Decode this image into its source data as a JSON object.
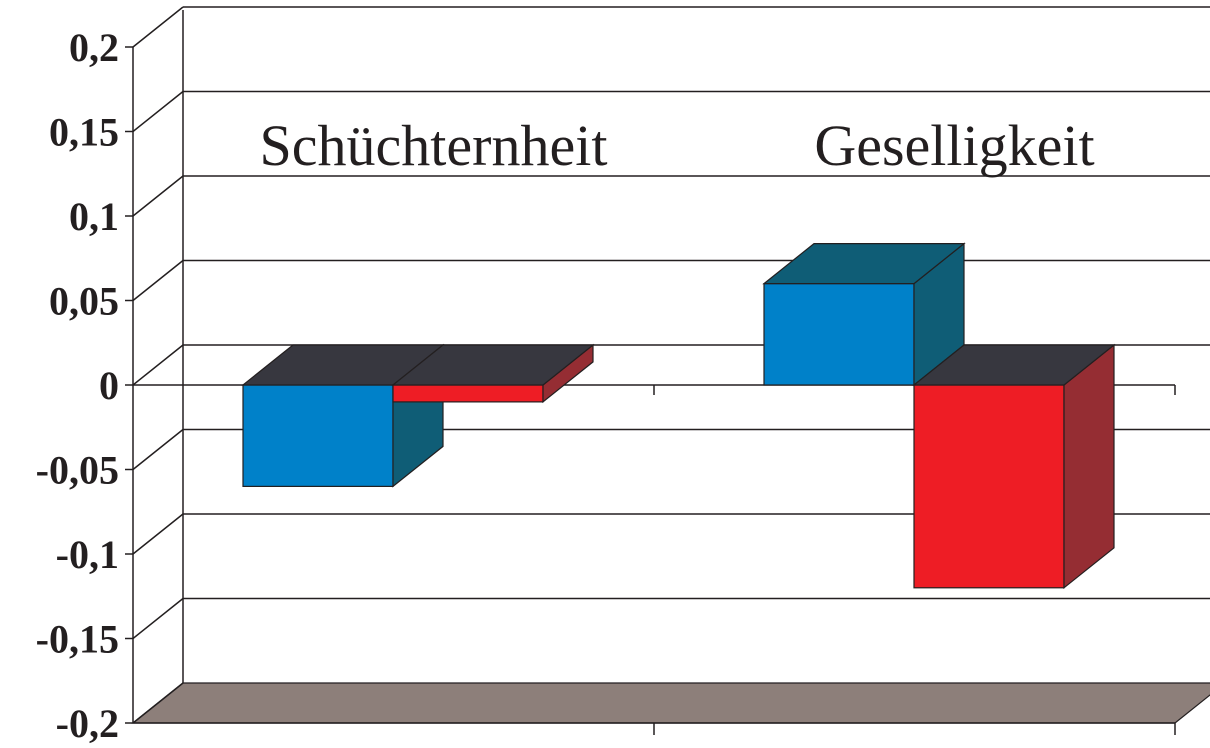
{
  "chart_data": {
    "type": "bar",
    "categories": [
      "Schüchternheit",
      "Geselligkeit"
    ],
    "series": [
      {
        "values": [
          -0.06,
          0.06
        ]
      },
      {
        "values": [
          -0.01,
          -0.12
        ]
      }
    ],
    "ylim": [
      -0.2,
      0.2
    ],
    "yticks": [
      "0,2",
      "0,15",
      "0,1",
      "0,05",
      "0",
      "-0,05",
      "-0,1",
      "-0,15",
      "-0,2"
    ],
    "yticks_values": [
      0.2,
      0.15,
      0.1,
      0.05,
      0,
      -0.05,
      -0.1,
      -0.15,
      -0.2
    ],
    "grid": true,
    "legend": "none",
    "colors": {
      "series_front": [
        "#0081c9",
        "#ee1d25"
      ],
      "series_side": [
        "#0f5d76",
        "#952d33"
      ],
      "bar_top": "#37373f",
      "floor": "#8d7f7a",
      "ink": "#231f20"
    }
  }
}
